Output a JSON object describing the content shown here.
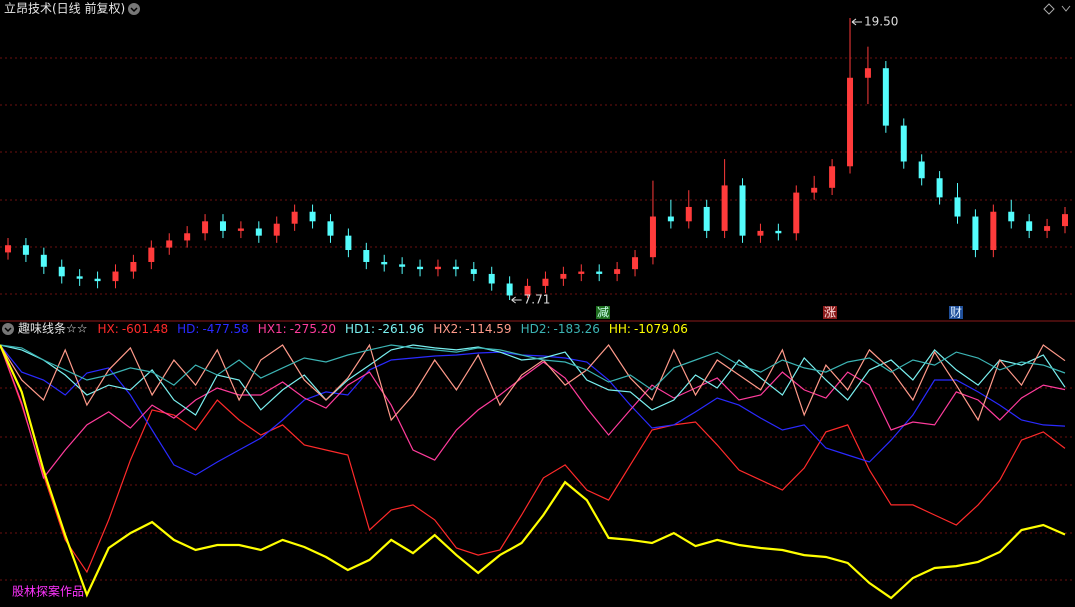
{
  "chart_data": [
    {
      "type": "candlestick",
      "title": "立昂技术(日线 前复权)",
      "open": [
        9.7,
        10.0,
        9.6,
        9.1,
        8.7,
        8.6,
        8.5,
        8.9,
        9.3,
        9.9,
        10.2,
        10.5,
        11.0,
        10.6,
        10.7,
        10.4,
        10.9,
        11.4,
        11.0,
        10.4,
        9.8,
        9.3,
        9.2,
        9.1,
        9.0,
        9.1,
        9.0,
        8.8,
        8.4,
        7.9,
        8.3,
        8.6,
        8.8,
        8.9,
        8.8,
        9.0,
        9.5,
        11.2,
        11.0,
        11.6,
        10.6,
        12.5,
        10.4,
        10.6,
        10.5,
        12.2,
        12.4,
        13.3,
        17.0,
        17.4,
        15.0,
        13.5,
        12.8,
        12.0,
        11.2,
        9.8,
        11.4,
        11.0,
        10.6,
        10.8
      ],
      "high": [
        10.3,
        10.3,
        9.9,
        9.4,
        9.0,
        8.9,
        9.2,
        9.6,
        10.2,
        10.5,
        10.8,
        11.3,
        11.3,
        11.0,
        11.0,
        11.2,
        11.7,
        11.7,
        11.3,
        10.7,
        10.1,
        9.6,
        9.5,
        9.4,
        9.4,
        9.4,
        9.3,
        9.1,
        8.7,
        8.6,
        8.9,
        9.1,
        9.2,
        9.2,
        9.3,
        9.8,
        12.7,
        11.9,
        12.3,
        11.9,
        13.6,
        12.8,
        10.9,
        10.9,
        12.5,
        12.9,
        13.6,
        19.5,
        18.3,
        17.7,
        15.3,
        13.8,
        13.1,
        12.6,
        11.5,
        11.7,
        11.9,
        11.3,
        11.1,
        11.6
      ],
      "low": [
        9.4,
        9.3,
        8.8,
        8.4,
        8.3,
        8.2,
        8.2,
        8.6,
        9.0,
        9.6,
        9.9,
        10.2,
        10.3,
        10.3,
        10.1,
        10.1,
        10.6,
        10.7,
        10.1,
        9.5,
        9.0,
        8.9,
        8.8,
        8.7,
        8.7,
        8.7,
        8.5,
        8.1,
        7.71,
        7.8,
        8.0,
        8.3,
        8.5,
        8.5,
        8.5,
        8.7,
        9.2,
        10.7,
        10.7,
        10.3,
        10.3,
        10.1,
        10.1,
        10.2,
        10.2,
        11.9,
        12.1,
        13.0,
        15.9,
        14.7,
        13.2,
        12.5,
        11.7,
        10.9,
        9.5,
        9.5,
        10.7,
        10.3,
        10.3,
        10.5
      ],
      "close": [
        10.0,
        9.6,
        9.1,
        8.7,
        8.6,
        8.5,
        8.9,
        9.3,
        9.9,
        10.2,
        10.5,
        11.0,
        10.6,
        10.7,
        10.4,
        10.9,
        11.4,
        11.0,
        10.4,
        9.8,
        9.3,
        9.2,
        9.1,
        9.0,
        9.1,
        9.0,
        8.8,
        8.4,
        7.9,
        8.3,
        8.6,
        8.8,
        8.9,
        8.8,
        9.0,
        9.5,
        11.2,
        11.0,
        11.6,
        10.6,
        12.5,
        10.4,
        10.6,
        10.5,
        12.2,
        12.4,
        13.3,
        17.0,
        17.4,
        15.0,
        13.5,
        12.8,
        12.0,
        11.2,
        9.8,
        11.4,
        11.0,
        10.6,
        10.8,
        11.3
      ],
      "ylim": [
        7,
        20
      ],
      "up_color": "#ff3b3b",
      "down_color": "#54fcfc",
      "annotations": [
        {
          "value": 19.5,
          "label": "19.50"
        },
        {
          "value": 7.71,
          "label": "7.71"
        }
      ],
      "events": [
        {
          "label": "减"
        },
        {
          "label": "涨"
        },
        {
          "label": "财"
        }
      ]
    },
    {
      "type": "line",
      "title": "趣味线条☆☆",
      "ylim": [
        -1470,
        0
      ],
      "footer": "股林探案作品",
      "series": [
        {
          "name": "HX:",
          "color": "#ff2a2a",
          "legend_value": {
            "value": -601.48,
            "label": "-601.48"
          },
          "values": [
            -28,
            -361,
            -749,
            -1109,
            -1287,
            -998,
            -666,
            -388,
            -416,
            -499,
            -333,
            -444,
            -527,
            -471,
            -582,
            -610,
            -638,
            -1054,
            -943,
            -915,
            -998,
            -1154,
            -1193,
            -1165,
            -971,
            -765,
            -693,
            -832,
            -888,
            -693,
            -499,
            -471,
            -455,
            -582,
            -721,
            -777,
            -832,
            -710,
            -510,
            -471,
            -721,
            -915,
            -915,
            -971,
            -1026,
            -915,
            -777,
            -555,
            -510,
            -601.48
          ]
        },
        {
          "name": "HD:",
          "color": "#2a2aff",
          "legend_value": {
            "value": -477.58,
            "label": "-477.58"
          },
          "values": [
            -28,
            -178,
            -222,
            -305,
            -183,
            -155,
            -305,
            -499,
            -693,
            -749,
            -677,
            -610,
            -544,
            -444,
            -333,
            -288,
            -305,
            -166,
            -111,
            -100,
            -89,
            -83,
            -72,
            -67,
            -83,
            -89,
            -100,
            -122,
            -222,
            -361,
            -488,
            -471,
            -399,
            -322,
            -361,
            -433,
            -499,
            -471,
            -599,
            -638,
            -677,
            -555,
            -416,
            -222,
            -222,
            -288,
            -361,
            -444,
            -471,
            -477.58
          ]
        },
        {
          "name": "HX1:",
          "color": "#ff3c9c",
          "legend_value": {
            "value": -275.2,
            "label": "-275.20"
          },
          "values": [
            -28,
            -349,
            -765,
            -610,
            -471,
            -399,
            -488,
            -361,
            -433,
            -333,
            -266,
            -305,
            -305,
            -233,
            -322,
            -377,
            -250,
            -178,
            -361,
            -610,
            -666,
            -499,
            -388,
            -305,
            -211,
            -122,
            -211,
            -377,
            -527,
            -388,
            -250,
            -322,
            -266,
            -211,
            -333,
            -305,
            -178,
            -277,
            -322,
            -178,
            -250,
            -499,
            -455,
            -471,
            -288,
            -333,
            -444,
            -322,
            -250,
            -275.2
          ]
        },
        {
          "name": "HD1:",
          "color": "#7af0f0",
          "legend_value": {
            "value": -261.96,
            "label": "-261.96"
          },
          "values": [
            -28,
            -55,
            -111,
            -194,
            -305,
            -250,
            -277,
            -166,
            -333,
            -416,
            -194,
            -222,
            -388,
            -277,
            -194,
            -333,
            -222,
            -139,
            -55,
            -28,
            -44,
            -55,
            -39,
            -67,
            -111,
            -100,
            -67,
            -222,
            -277,
            -288,
            -388,
            -333,
            -194,
            -266,
            -111,
            -211,
            -305,
            -100,
            -222,
            -333,
            -166,
            -111,
            -222,
            -55,
            -166,
            -250,
            -111,
            -139,
            -83,
            -261.96
          ]
        },
        {
          "name": "HX2:",
          "color": "#ff9a8a",
          "legend_value": {
            "value": -114.59,
            "label": "-114.59"
          },
          "values": [
            -28,
            -222,
            -333,
            -55,
            -361,
            -166,
            -44,
            -305,
            -111,
            -250,
            -55,
            -333,
            -111,
            -28,
            -222,
            -333,
            -211,
            -28,
            -444,
            -305,
            -111,
            -277,
            -83,
            -361,
            -194,
            -111,
            -250,
            -166,
            -28,
            -211,
            -333,
            -55,
            -305,
            -111,
            -194,
            -277,
            -55,
            -416,
            -139,
            -277,
            -55,
            -166,
            -333,
            -67,
            -250,
            -444,
            -111,
            -250,
            -28,
            -114.59
          ]
        },
        {
          "name": "HD2:",
          "color": "#3cb4b4",
          "legend_value": {
            "value": -183.26,
            "label": "-183.26"
          },
          "values": [
            -28,
            -44,
            -111,
            -166,
            -222,
            -194,
            -155,
            -178,
            -250,
            -139,
            -194,
            -111,
            -211,
            -155,
            -100,
            -122,
            -83,
            -55,
            -28,
            -44,
            -55,
            -67,
            -44,
            -55,
            -83,
            -111,
            -122,
            -166,
            -233,
            -194,
            -277,
            -155,
            -111,
            -67,
            -139,
            -178,
            -111,
            -155,
            -178,
            -122,
            -100,
            -178,
            -111,
            -139,
            -67,
            -100,
            -166,
            -122,
            -139,
            -183.26
          ]
        },
        {
          "name": "HH:",
          "color": "#ffff00",
          "legend_value": {
            "value": -1079.06,
            "label": "-1079.06"
          },
          "values": [
            -28,
            -288,
            -721,
            -1082,
            -1414,
            -1154,
            -1071,
            -1010,
            -1109,
            -1165,
            -1137,
            -1137,
            -1165,
            -1109,
            -1148,
            -1204,
            -1276,
            -1220,
            -1109,
            -1182,
            -1082,
            -1193,
            -1292,
            -1193,
            -1126,
            -971,
            -788,
            -888,
            -1098,
            -1109,
            -1126,
            -1071,
            -1143,
            -1109,
            -1137,
            -1154,
            -1165,
            -1193,
            -1204,
            -1237,
            -1348,
            -1431,
            -1320,
            -1265,
            -1254,
            -1231,
            -1176,
            -1054,
            -1026,
            -1079.06
          ]
        }
      ]
    }
  ]
}
